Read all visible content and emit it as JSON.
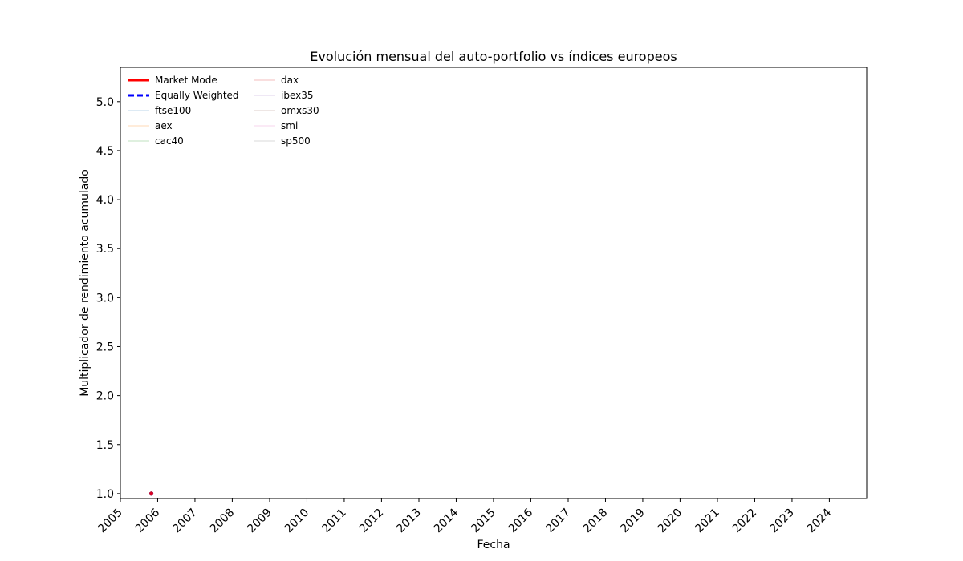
{
  "chart_data": {
    "type": "line",
    "title": "Evolución mensual del auto-portfolio vs índices europeos",
    "xlabel": "Fecha",
    "ylabel": "Multiplicador de rendimiento acumulado",
    "x_ticks": [
      "2005",
      "2006",
      "2007",
      "2008",
      "2009",
      "2010",
      "2011",
      "2012",
      "2013",
      "2014",
      "2015",
      "2016",
      "2017",
      "2018",
      "2019",
      "2020",
      "2021",
      "2022",
      "2023",
      "2024"
    ],
    "y_ticks": [
      "1.0",
      "1.5",
      "2.0",
      "2.5",
      "3.0",
      "3.5",
      "4.0",
      "4.5",
      "5.0"
    ],
    "xlim": [
      "2005-01-01",
      "2025-01-01"
    ],
    "ylim": [
      0.95,
      5.35
    ],
    "grid": false,
    "legend_position": "top-left",
    "series": [
      {
        "name": "Market Mode",
        "color": "#ff0000",
        "style": "solid",
        "points": [
          {
            "x": "2005-10-31",
            "y": 1.0
          }
        ]
      },
      {
        "name": "Equally Weighted",
        "color": "#0000ff",
        "style": "dashed",
        "points": [
          {
            "x": "2005-10-31",
            "y": 1.0
          }
        ]
      },
      {
        "name": "ftse100",
        "color": "#1f77b4",
        "style": "solid",
        "points": [
          {
            "x": "2005-10-31",
            "y": 1.0
          }
        ]
      },
      {
        "name": "aex",
        "color": "#ff7f0e",
        "style": "solid",
        "points": [
          {
            "x": "2005-10-31",
            "y": 1.0
          }
        ]
      },
      {
        "name": "cac40",
        "color": "#2ca02c",
        "style": "solid",
        "points": [
          {
            "x": "2005-10-31",
            "y": 1.0
          }
        ]
      },
      {
        "name": "dax",
        "color": "#d62728",
        "style": "solid",
        "points": [
          {
            "x": "2005-10-31",
            "y": 1.0
          }
        ]
      },
      {
        "name": "ibex35",
        "color": "#9467bd",
        "style": "solid",
        "points": [
          {
            "x": "2005-10-31",
            "y": 1.0
          }
        ]
      },
      {
        "name": "omxs30",
        "color": "#8c564b",
        "style": "solid",
        "points": [
          {
            "x": "2005-10-31",
            "y": 1.0
          }
        ]
      },
      {
        "name": "smi",
        "color": "#e377c2",
        "style": "solid",
        "points": [
          {
            "x": "2005-10-31",
            "y": 1.0
          }
        ]
      },
      {
        "name": "sp500",
        "color": "#7f7f7f",
        "style": "solid",
        "points": [
          {
            "x": "2005-10-31",
            "y": 1.0
          }
        ]
      }
    ]
  }
}
